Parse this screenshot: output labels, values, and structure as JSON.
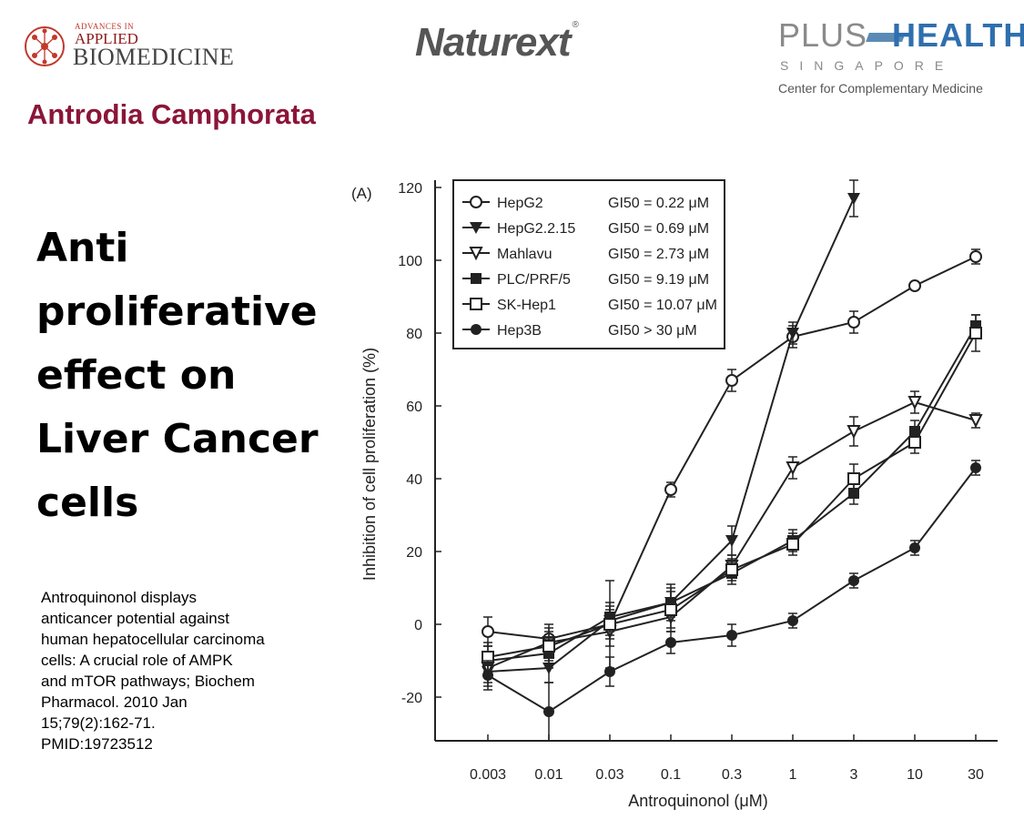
{
  "logos": {
    "aab": {
      "small": "ADVANCES IN",
      "line1": "APPLIED",
      "line2": "BIOMEDICINE"
    },
    "naturext": {
      "text": "Naturext",
      "mark": "®"
    },
    "plushealth": {
      "plus": "PLUS",
      "health": "HEALTH",
      "sub": "SINGAPORE",
      "tagline": "Center for Complementary Medicine"
    }
  },
  "title": "Antrodia Camphorata",
  "headline": {
    "lines": [
      "Anti",
      "proliferative",
      "effect on",
      "Liver Cancer",
      "cells"
    ]
  },
  "citation": {
    "lines": [
      "Antroquinonol displays",
      "anticancer potential against",
      "human hepatocellular carcinoma",
      "cells: A crucial role of AMPK",
      "and mTOR pathways; Biochem",
      "Pharmacol. 2010 Jan",
      "15;79(2):162-71.",
      "PMID:19723512"
    ]
  },
  "colors": {
    "title": "#8b1538",
    "plot_line": "#222222",
    "plus_blue": "#2f6fae"
  },
  "chart_data": {
    "type": "line",
    "panel_label": "(A)",
    "xlabel": "Antroquinonol (μM)",
    "ylabel": "Inhibition of cell proliferation (%)",
    "categories": [
      "0.003",
      "0.01",
      "0.03",
      "0.1",
      "0.3",
      "1",
      "3",
      "10",
      "30"
    ],
    "yticks": [
      -20,
      0,
      20,
      40,
      60,
      80,
      100,
      120
    ],
    "ylim": [
      -32,
      120
    ],
    "legend_position": "top-left",
    "series": [
      {
        "name": "HepG2",
        "gi50": "GI50 =  0.22 μM",
        "marker": "open-circle",
        "values": [
          -2,
          -4,
          0,
          37,
          67,
          79,
          83,
          93,
          101
        ],
        "errors": [
          4,
          4,
          4,
          2,
          3,
          3,
          3,
          1,
          2
        ]
      },
      {
        "name": "HepG2.2.15",
        "gi50": "GI50 =  0.69 μM",
        "marker": "filled-triangle-down",
        "values": [
          -13,
          -12,
          1,
          6,
          23,
          80,
          117,
          null,
          null
        ],
        "errors": [
          4,
          4,
          4,
          5,
          4,
          3,
          5,
          null,
          null
        ]
      },
      {
        "name": "Mahlavu",
        "gi50": "GI50 =  2.73 μM",
        "marker": "open-triangle-down",
        "values": [
          -12,
          -5,
          -2,
          2,
          16,
          43,
          53,
          61,
          56
        ],
        "errors": [
          4,
          4,
          4,
          4,
          3,
          3,
          4,
          3,
          2
        ]
      },
      {
        "name": "PLC/PRF/5",
        "gi50": "GI50 =  9.19 μM",
        "marker": "filled-square",
        "values": [
          -10,
          -8,
          2,
          6,
          14,
          23,
          36,
          53,
          82
        ],
        "errors": [
          4,
          4,
          4,
          4,
          3,
          3,
          3,
          3,
          3
        ]
      },
      {
        "name": "SK-Hep1",
        "gi50": "GI50 = 10.07 μM",
        "marker": "open-square",
        "values": [
          -9,
          -6,
          0,
          4,
          15,
          22,
          40,
          50,
          80
        ],
        "errors": [
          4,
          4,
          12,
          5,
          3,
          3,
          4,
          3,
          5
        ]
      },
      {
        "name": "Hep3B",
        "gi50": "GI50 >    30 μM",
        "marker": "filled-circle",
        "values": [
          -14,
          -24,
          -13,
          -5,
          -3,
          1,
          12,
          21,
          43
        ],
        "errors": [
          4,
          8,
          4,
          3,
          3,
          2,
          2,
          2,
          2
        ]
      }
    ]
  }
}
